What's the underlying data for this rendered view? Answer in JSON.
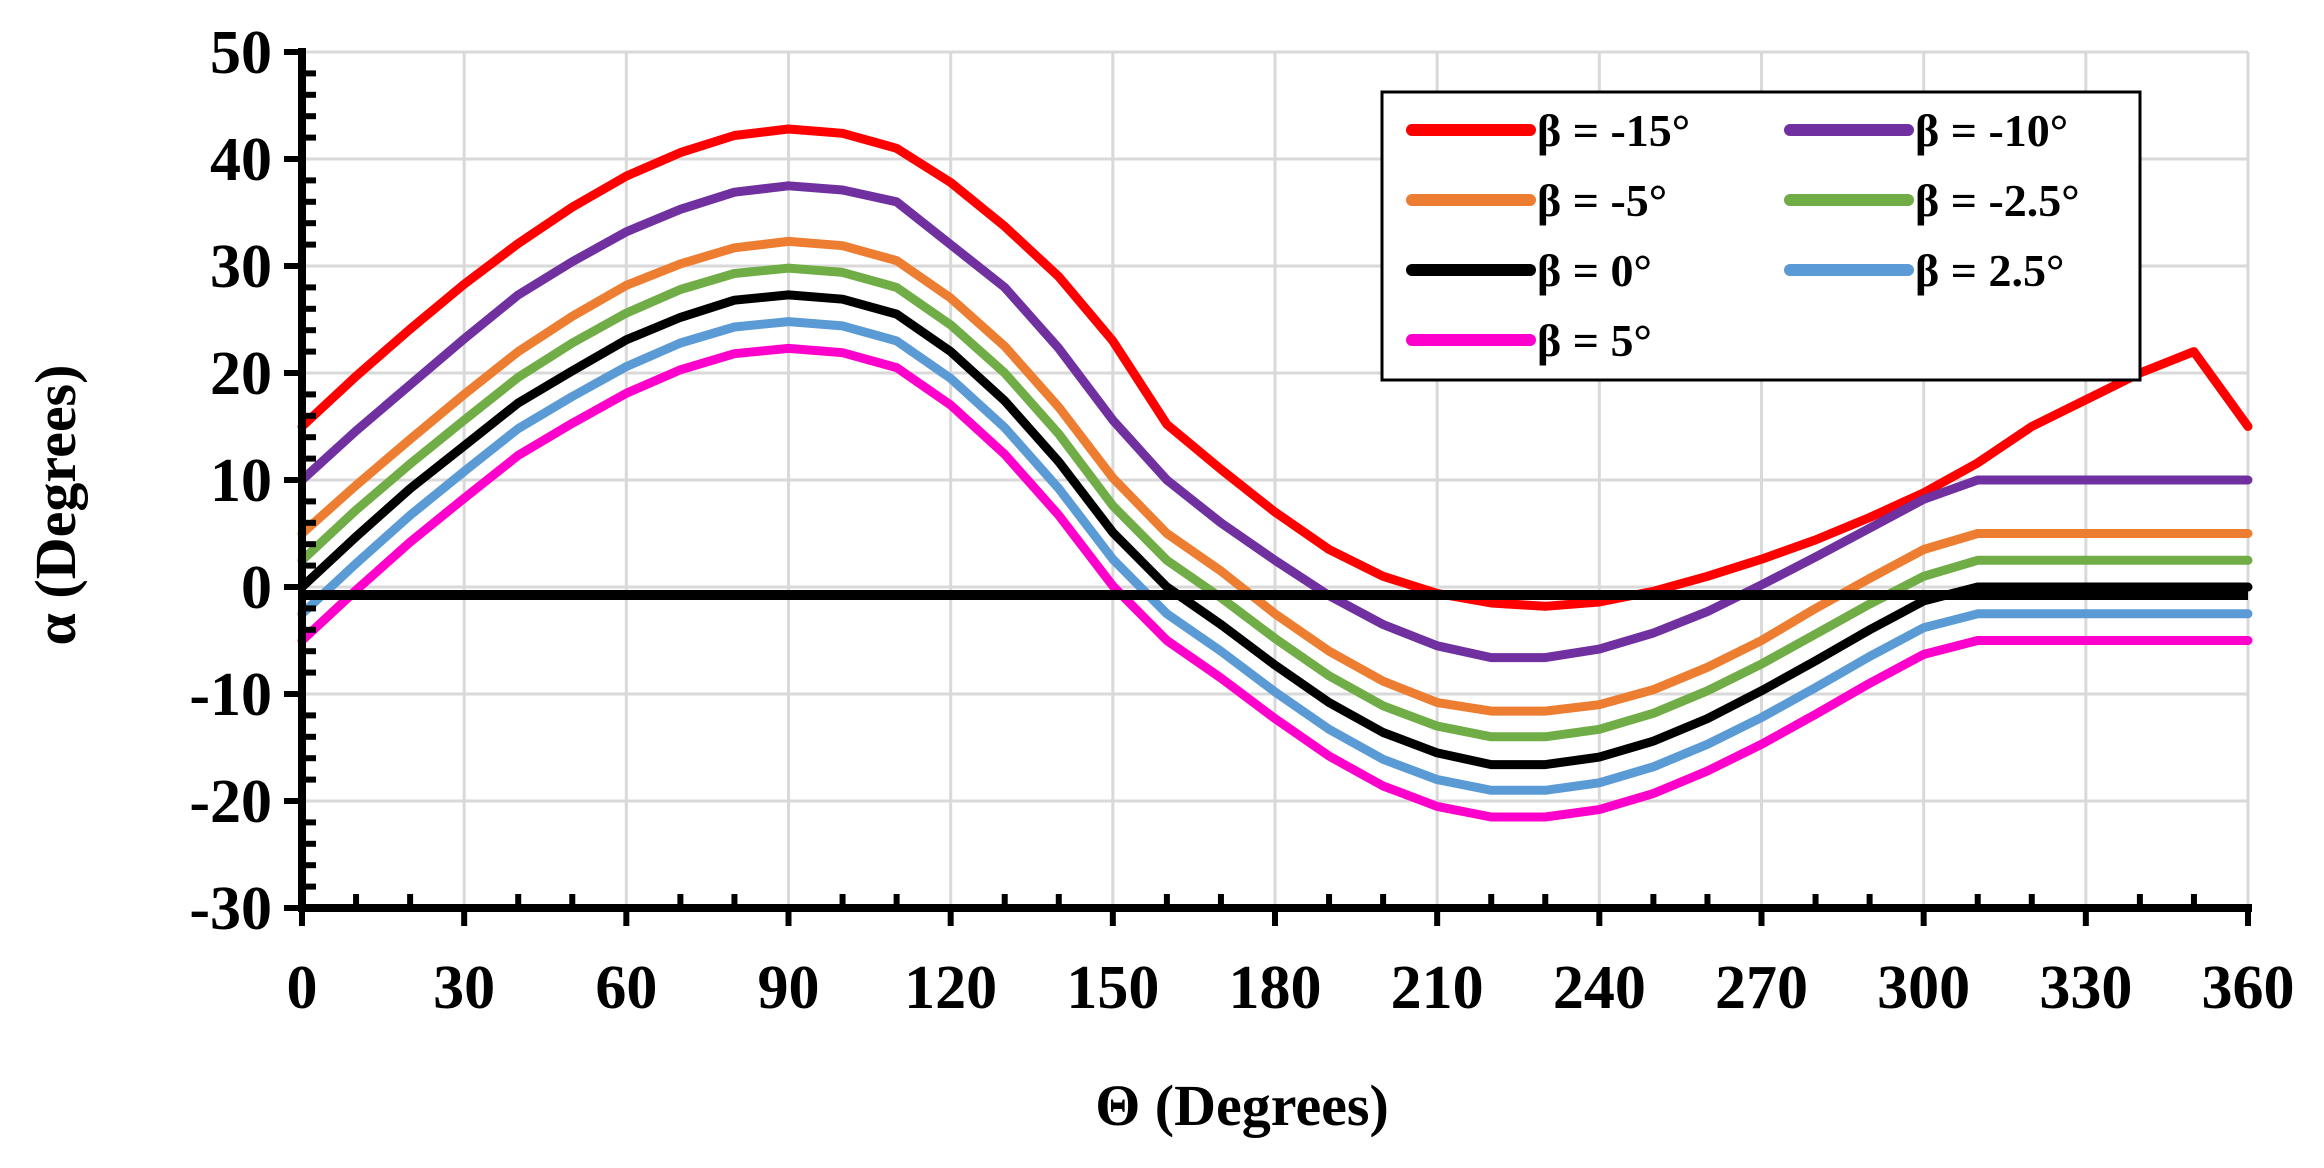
{
  "chart_data": {
    "type": "line",
    "title": "",
    "xlabel": "Θ (Degrees)",
    "ylabel": "α (Degrees)",
    "xlim": [
      0,
      360
    ],
    "ylim": [
      -30,
      50
    ],
    "xticks": [
      0,
      30,
      60,
      90,
      120,
      150,
      180,
      210,
      240,
      270,
      300,
      330,
      360
    ],
    "yticks": [
      -30,
      -20,
      -10,
      0,
      10,
      20,
      30,
      40,
      50
    ],
    "grid": true,
    "legend_position": "top-right",
    "x": [
      0,
      10,
      20,
      30,
      40,
      50,
      60,
      70,
      80,
      90,
      100,
      110,
      120,
      130,
      140,
      150,
      160,
      170,
      180,
      190,
      200,
      210,
      220,
      230,
      240,
      250,
      260,
      270,
      280,
      290,
      300,
      310,
      320,
      330,
      340,
      350,
      360
    ],
    "series": [
      {
        "name": "β = -15°",
        "color": "#ff0000",
        "values": [
          15,
          19.7,
          24.1,
          28.3,
          32.1,
          35.5,
          38.4,
          40.6,
          42.2,
          42.8,
          42.4,
          41,
          37.8,
          33.7,
          29,
          23,
          15.2,
          11,
          7,
          3.5,
          1,
          -0.6,
          -1.5,
          -1.8,
          -1.4,
          -0.4,
          1,
          2.6,
          4.4,
          6.5,
          8.8,
          11.6,
          15,
          17.5,
          20,
          22,
          15
        ]
      },
      {
        "name": "β = -10°",
        "color": "#7030a0",
        "values": [
          10,
          14.6,
          18.9,
          23.2,
          27.3,
          30.4,
          33.2,
          35.3,
          36.9,
          37.5,
          37.1,
          36,
          32,
          28,
          22.3,
          15.6,
          10,
          6,
          2.5,
          -0.8,
          -3.5,
          -5.5,
          -6.6,
          -6.6,
          -5.8,
          -4.3,
          -2.3,
          0.2,
          2.8,
          5.5,
          8.2,
          10,
          10,
          10,
          10,
          10,
          10
        ]
      },
      {
        "name": "β = -5°",
        "color": "#ed7d31",
        "values": [
          5,
          9.5,
          13.8,
          18,
          22,
          25.3,
          28.2,
          30.2,
          31.7,
          32.3,
          31.9,
          30.5,
          27,
          22.5,
          16.8,
          10.2,
          5,
          1.5,
          -2.5,
          -6,
          -8.8,
          -10.8,
          -11.6,
          -11.6,
          -11,
          -9.6,
          -7.5,
          -5,
          -2,
          0.8,
          3.5,
          5,
          5,
          5,
          5,
          5,
          5
        ]
      },
      {
        "name": "β = -2.5°",
        "color": "#70ad47",
        "values": [
          2.5,
          7.2,
          11.5,
          15.6,
          19.6,
          22.8,
          25.6,
          27.8,
          29.3,
          29.8,
          29.4,
          28,
          24.5,
          20,
          14.3,
          7.6,
          2.5,
          -1,
          -4.8,
          -8.3,
          -11.1,
          -13,
          -14,
          -14,
          -13.3,
          -11.8,
          -9.7,
          -7.2,
          -4.4,
          -1.6,
          1,
          2.5,
          2.5,
          2.5,
          2.5,
          2.5,
          2.5
        ]
      },
      {
        "name": "β = 0°",
        "color": "#000000",
        "values": [
          0,
          4.7,
          9.2,
          13.2,
          17.2,
          20.2,
          23.1,
          25.2,
          26.8,
          27.3,
          26.9,
          25.5,
          22,
          17.4,
          11.7,
          5.1,
          0,
          -3.5,
          -7.3,
          -10.8,
          -13.6,
          -15.5,
          -16.6,
          -16.6,
          -15.9,
          -14.4,
          -12.3,
          -9.7,
          -6.9,
          -4,
          -1.3,
          0,
          0,
          0,
          0,
          0,
          0
        ]
      },
      {
        "name": "β = 2.5°",
        "color": "#5b9bd5",
        "values": [
          -2.5,
          2.2,
          6.7,
          10.8,
          14.8,
          17.8,
          20.6,
          22.8,
          24.3,
          24.8,
          24.4,
          23,
          19.5,
          14.9,
          9.2,
          2.6,
          -2.5,
          -6,
          -9.8,
          -13.3,
          -16.1,
          -18,
          -19,
          -19,
          -18.3,
          -16.8,
          -14.7,
          -12.2,
          -9.4,
          -6.5,
          -3.8,
          -2.5,
          -2.5,
          -2.5,
          -2.5,
          -2.5,
          -2.5
        ]
      },
      {
        "name": "β = 5°",
        "color": "#ff00cc",
        "values": [
          -5,
          -0.3,
          4.2,
          8.3,
          12.3,
          15.3,
          18.1,
          20.3,
          21.8,
          22.3,
          21.9,
          20.5,
          17,
          12.4,
          6.7,
          0.1,
          -5,
          -8.5,
          -12.3,
          -15.8,
          -18.6,
          -20.5,
          -21.5,
          -21.5,
          -20.8,
          -19.3,
          -17.2,
          -14.7,
          -11.9,
          -9,
          -6.3,
          -5,
          -5,
          -5,
          -5,
          -5,
          -5
        ]
      }
    ],
    "reference_line": {
      "name": "zero",
      "y": 0,
      "color": "#000000"
    }
  }
}
